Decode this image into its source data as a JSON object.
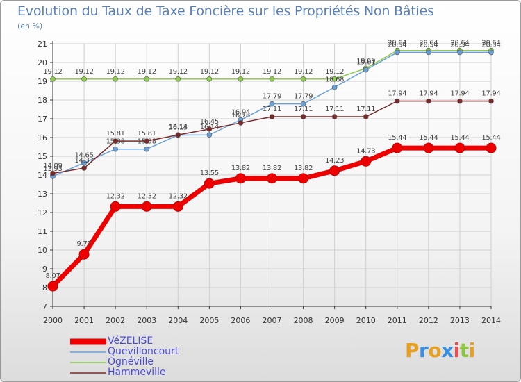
{
  "title": "Evolution du Taux de Taxe Foncière sur les Propriétés Non Bâties",
  "unit": "(en %)",
  "brand": {
    "letters": [
      "P",
      "r",
      "o",
      "x",
      "i",
      "t",
      "i"
    ],
    "colors": [
      "#e8a020",
      "#3a8ee0",
      "#e8a020",
      "#3a8ee0",
      "#e85050",
      "#8cc63f",
      "#e8a020"
    ]
  },
  "colors": {
    "VéZELISE": "#ee0000",
    "Quevilloncourt": "#6aa0d8",
    "Ognéville": "#8ccc4c",
    "Hammeville": "#7a2a2a"
  },
  "chart_data": {
    "type": "line",
    "x": [
      "2000",
      "2001",
      "2002",
      "2003",
      "2004",
      "2005",
      "2006",
      "2007",
      "2008",
      "2009",
      "2010",
      "2011",
      "2012",
      "2013",
      "2014"
    ],
    "ylim": [
      7,
      21
    ],
    "yticks": [
      "7",
      "8",
      "9",
      "10",
      "11",
      "12",
      "13",
      "14",
      "15",
      "16",
      "17",
      "18",
      "19",
      "20",
      "21"
    ],
    "grid": true,
    "legend_position": "bottom-left",
    "series": [
      {
        "name": "Ognéville",
        "values": [
          19.12,
          19.12,
          19.12,
          19.12,
          19.12,
          19.12,
          19.12,
          19.12,
          19.12,
          19.12,
          19.69,
          20.64,
          20.64,
          20.64,
          20.64
        ],
        "labels": [
          "19.12",
          "19.12",
          "19.12",
          "19.12",
          "19.12",
          "19.12",
          "19.12",
          "19.12",
          "19.12",
          "19.12",
          "19.69",
          "20.64",
          "20.64",
          "20.64",
          "20.64"
        ]
      },
      {
        "name": "Quevilloncourt",
        "values": [
          13.93,
          14.65,
          15.38,
          15.38,
          16.13,
          16.14,
          16.94,
          17.79,
          17.79,
          18.68,
          19.61,
          20.54,
          20.54,
          20.54,
          20.54
        ],
        "labels": [
          "13.93",
          "14.65",
          "15.38",
          "15.38",
          "16.13",
          "16.14",
          "16.94",
          "17.79",
          "17.79",
          "18.68",
          "19.61",
          "20.54",
          "20.54",
          "20.54",
          "20.54"
        ]
      },
      {
        "name": "Hammeville",
        "values": [
          14.09,
          14.37,
          15.81,
          15.81,
          16.14,
          16.45,
          16.78,
          17.11,
          17.11,
          17.11,
          17.11,
          17.94,
          17.94,
          17.94,
          17.94
        ],
        "labels": [
          "14.09",
          "14.37",
          "15.81",
          "15.81",
          "16.14",
          "16.45",
          "16.78",
          "17.11",
          "17.11",
          "17.11",
          "17.11",
          "17.94",
          "17.94",
          "17.94",
          "17.94"
        ]
      },
      {
        "name": "VéZELISE",
        "values": [
          8.07,
          9.77,
          12.32,
          12.32,
          12.32,
          13.55,
          13.82,
          13.82,
          13.82,
          14.23,
          14.73,
          15.44,
          15.44,
          15.44,
          15.44
        ],
        "labels": [
          "8.07",
          "9.77",
          "12.32",
          "12.32",
          "12.32",
          "13.55",
          "13.82",
          "13.82",
          "13.82",
          "14.23",
          "14.73",
          "15.44",
          "15.44",
          "15.44",
          "15.44"
        ]
      }
    ],
    "legend": [
      "VéZELISE",
      "Quevilloncourt",
      "Ognéville",
      "Hammeville"
    ]
  }
}
